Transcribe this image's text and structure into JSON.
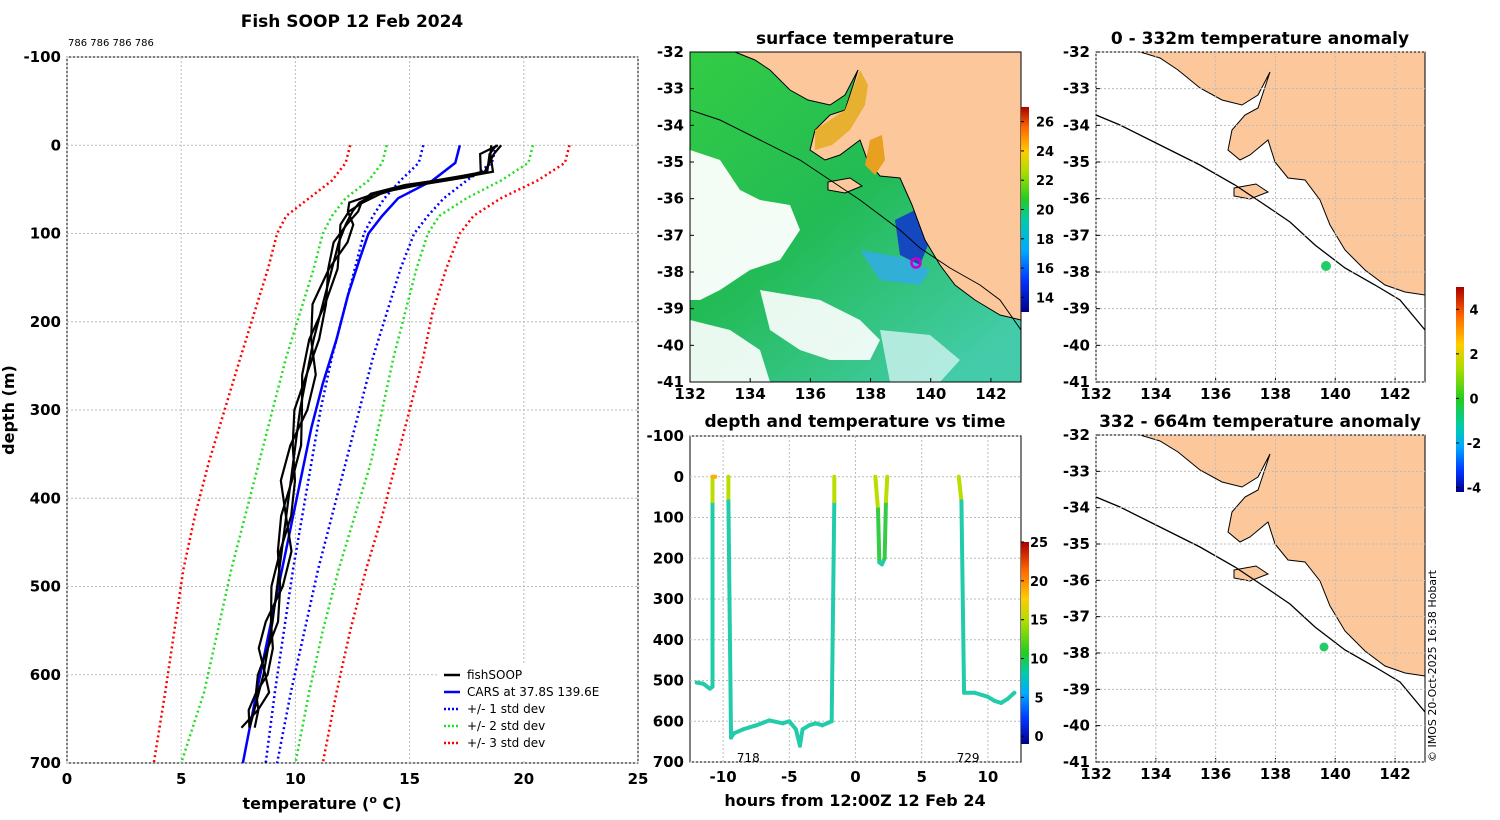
{
  "chart_data": [
    {
      "type": "line",
      "title": "Fish SOOP 12 Feb 2024",
      "annotation": "786 786 786 786",
      "xlabel": "temperature (",
      "xlabel_sup": "o",
      "xlabel_tail": " C)",
      "ylabel": "depth (m)",
      "xlim": [
        0,
        25
      ],
      "ylim": [
        -100,
        700
      ],
      "y_reversed": true,
      "xticks": [
        "0",
        "5",
        "10",
        "15",
        "20",
        "25"
      ],
      "yticks": [
        "-100",
        "0",
        "100",
        "200",
        "300",
        "400",
        "500",
        "600",
        "700"
      ],
      "grid": true,
      "legend_position": "bottom-right",
      "series": [
        {
          "name": "fishSOOP",
          "color": "#000000",
          "style": "solid",
          "x": [
            18.8,
            18.5,
            18.4,
            17.5,
            15.0,
            13.5,
            12.8,
            12.5,
            12.2,
            11.9,
            11.6,
            11.2,
            10.8,
            10.5,
            10.2,
            10.0,
            9.8,
            9.6,
            9.4,
            9.2,
            9.0,
            8.8,
            8.6,
            8.4,
            8.2,
            8.0
          ],
          "y": [
            0,
            10,
            30,
            35,
            45,
            55,
            65,
            75,
            90,
            110,
            140,
            180,
            220,
            260,
            300,
            340,
            380,
            420,
            460,
            500,
            540,
            570,
            600,
            620,
            640,
            660
          ]
        },
        {
          "name": "CARS at 37.8S 139.6E",
          "color": "#0000ff",
          "style": "solid",
          "x": [
            17.2,
            17.0,
            16.0,
            14.5,
            13.8,
            13.2,
            12.8,
            12.3,
            11.8,
            11.2,
            10.7,
            10.3,
            9.9,
            9.5,
            9.1,
            8.7,
            8.3,
            8.0,
            7.7
          ],
          "y": [
            0,
            20,
            40,
            60,
            80,
            100,
            130,
            170,
            220,
            270,
            320,
            370,
            420,
            470,
            520,
            570,
            620,
            660,
            700
          ]
        },
        {
          "name": "+/- 1 std dev",
          "color": "#0000ff",
          "style": "dotted",
          "x_plus": [
            15.6,
            15.4,
            14.6,
            13.9,
            13.4,
            13.0,
            12.6,
            12.1,
            11.6,
            11.1,
            10.7,
            10.3,
            9.9,
            9.5,
            9.1,
            8.7
          ],
          "x_minus": [
            18.8,
            18.6,
            17.5,
            16.5,
            15.8,
            15.2,
            14.6,
            14.0,
            13.4,
            12.8,
            12.2,
            11.6,
            11.0,
            10.4,
            9.8,
            9.2
          ],
          "y": [
            0,
            20,
            40,
            60,
            80,
            100,
            140,
            190,
            240,
            300,
            360,
            420,
            480,
            550,
            620,
            700
          ]
        },
        {
          "name": "+/- 2 std dev",
          "color": "#22dd22",
          "style": "dotted",
          "x_plus": [
            14.0,
            13.8,
            13.2,
            12.2,
            11.6,
            11.2,
            10.8,
            10.2,
            9.6,
            9.0,
            8.4,
            7.8,
            7.2,
            6.6,
            6.0,
            5.0
          ],
          "x_minus": [
            20.4,
            20.2,
            19.0,
            17.5,
            16.3,
            15.8,
            15.3,
            14.8,
            14.3,
            13.8,
            13.3,
            12.6,
            11.9,
            11.2,
            10.6,
            10.0
          ],
          "y": [
            0,
            20,
            40,
            60,
            80,
            100,
            140,
            190,
            240,
            300,
            360,
            420,
            480,
            550,
            620,
            700
          ]
        },
        {
          "name": "+/- 3 std dev",
          "color": "#ff0000",
          "style": "dotted",
          "x_plus": [
            12.4,
            12.2,
            11.6,
            10.6,
            9.6,
            9.2,
            8.8,
            8.2,
            7.6,
            6.9,
            6.2,
            5.6,
            5.1,
            4.7,
            4.3,
            3.8
          ],
          "x_minus": [
            22.0,
            21.8,
            20.6,
            19.0,
            17.8,
            17.2,
            16.6,
            16.0,
            15.6,
            15.0,
            14.4,
            13.8,
            13.1,
            12.4,
            11.8,
            11.2
          ],
          "y": [
            0,
            20,
            40,
            60,
            80,
            100,
            140,
            190,
            240,
            300,
            360,
            420,
            480,
            550,
            620,
            700
          ]
        }
      ]
    },
    {
      "type": "heatmap",
      "title": "surface temperature",
      "xlim": [
        132,
        143
      ],
      "ylim": [
        -41,
        -32
      ],
      "xticks": [
        "132",
        "134",
        "136",
        "138",
        "140",
        "142"
      ],
      "yticks": [
        "-32",
        "-33",
        "-34",
        "-35",
        "-36",
        "-37",
        "-38",
        "-39",
        "-40",
        "-41"
      ],
      "colorbar_range": [
        13,
        27
      ],
      "colorbar_ticks": [
        "14",
        "16",
        "18",
        "20",
        "22",
        "24",
        "26"
      ],
      "marker": {
        "lon": 139.6,
        "lat": -37.8,
        "color": "#cc00cc"
      }
    },
    {
      "type": "scatter",
      "title": "depth and temperature vs time",
      "xlabel": "hours from 12:00Z 12 Feb 24",
      "xlim": [
        -12.5,
        12.5
      ],
      "ylim": [
        -100,
        700
      ],
      "y_reversed": true,
      "xticks": [
        "-10",
        "-5",
        "0",
        "5",
        "10"
      ],
      "yticks": [
        "-100",
        "0",
        "100",
        "200",
        "300",
        "400",
        "500",
        "600",
        "700"
      ],
      "annotations": [
        {
          "text": "718",
          "x": -8.1,
          "y": 690
        },
        {
          "text": "729",
          "x": 8.5,
          "y": 690
        }
      ],
      "colorbar_range": [
        -1,
        25
      ],
      "colorbar_ticks": [
        "0",
        "5",
        "10",
        "15",
        "20",
        "25"
      ],
      "profiles": [
        {
          "x": [
            -12,
            -11.5,
            -11,
            -10.8,
            -10.8,
            -10.8,
            -10.6,
            -10.6
          ],
          "y": [
            505,
            508,
            520,
            515,
            60,
            0,
            0,
            0
          ]
        },
        {
          "x": [
            -9.6,
            -9.6,
            -9.4,
            -9.2,
            -8.5,
            -7.5,
            -6.5,
            -5.5,
            -5,
            -4.5,
            -4.2,
            -4,
            -3.5,
            -3,
            -2.5,
            -1.8,
            -1.6,
            -1.6
          ],
          "y": [
            0,
            60,
            640,
            630,
            620,
            610,
            598,
            605,
            600,
            620,
            660,
            620,
            610,
            605,
            610,
            600,
            60,
            0
          ]
        },
        {
          "x": [
            1.5,
            1.7,
            1.8,
            2.0,
            2.2,
            2.3,
            2.4
          ],
          "y": [
            0,
            80,
            210,
            215,
            200,
            60,
            0
          ]
        },
        {
          "x": [
            7.8,
            8.0,
            8.2,
            9.0,
            10.0,
            10.5,
            11.0,
            11.5,
            12.0
          ],
          "y": [
            0,
            60,
            530,
            530,
            540,
            550,
            555,
            545,
            530
          ]
        }
      ]
    },
    {
      "type": "heatmap",
      "title": "0 - 332m temperature anomaly",
      "xlim": [
        132,
        143
      ],
      "ylim": [
        -41,
        -32
      ],
      "xticks": [
        "132",
        "134",
        "136",
        "138",
        "140",
        "142"
      ],
      "yticks": [
        "-32",
        "-33",
        "-34",
        "-35",
        "-36",
        "-37",
        "-38",
        "-39",
        "-40",
        "-41"
      ],
      "marker": {
        "lon": 139.8,
        "lat": -37.8,
        "color": "#22cc66"
      }
    },
    {
      "type": "heatmap",
      "title": "332 - 664m temperature anomaly",
      "xlim": [
        132,
        143
      ],
      "ylim": [
        -41,
        -32
      ],
      "xticks": [
        "132",
        "134",
        "136",
        "138",
        "140",
        "142"
      ],
      "yticks": [
        "-32",
        "-33",
        "-34",
        "-35",
        "-36",
        "-37",
        "-38",
        "-39",
        "-40",
        "-41"
      ],
      "marker": {
        "lon": 139.7,
        "lat": -37.8,
        "color": "#22cc66"
      },
      "colorbar_range": [
        -4.2,
        5
      ],
      "colorbar_ticks": [
        "4",
        "2",
        "0",
        "-2",
        "-4"
      ]
    }
  ],
  "footer": {
    "copyright": "© IMOS 20-Oct-2025 16:38 Hobart"
  },
  "colors": {
    "land": "#fcc89b",
    "sea_sst": "#22cc22",
    "grid": "#bbbbbb"
  }
}
